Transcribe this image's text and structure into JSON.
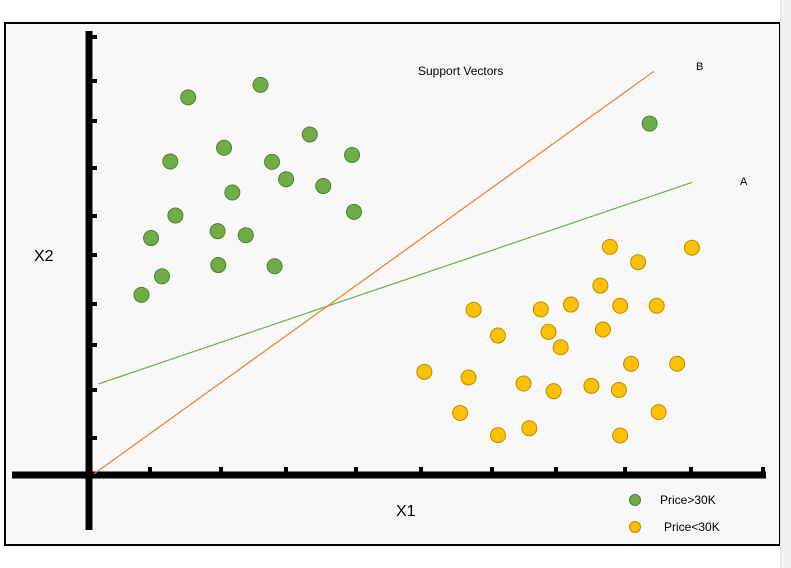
{
  "title": "Support Vectors",
  "x_label": "X1",
  "y_label": "X2",
  "line_a_label": "A",
  "line_b_label": "B",
  "legend": {
    "green": "Price>30K",
    "yellow": "Price<30K"
  },
  "colors": {
    "green_fill": "#70ad47",
    "green_stroke": "#507e32",
    "yellow_fill": "#ffc000",
    "yellow_stroke": "#bc8c00",
    "line_a": "#70ad47",
    "line_b": "#ed7d31",
    "axis": "#000000",
    "background": "#f8f8f8"
  },
  "chart_data": {
    "type": "scatter",
    "title": "Support Vectors",
    "xlabel": "X1",
    "ylabel": "X2",
    "xlim": [
      0,
      10
    ],
    "ylim": [
      0,
      10
    ],
    "x_ticks": 10,
    "y_ticks": 11,
    "series": [
      {
        "name": "Price>30K",
        "color": "#70ad47",
        "points": [
          [
            0.82,
            4.47
          ],
          [
            1.14,
            4.93
          ],
          [
            0.97,
            5.88
          ],
          [
            1.35,
            6.44
          ],
          [
            1.27,
            7.78
          ],
          [
            1.55,
            9.37
          ],
          [
            2.02,
            5.21
          ],
          [
            2.01,
            6.05
          ],
          [
            2.11,
            8.12
          ],
          [
            2.24,
            7.01
          ],
          [
            2.45,
            5.95
          ],
          [
            2.68,
            9.68
          ],
          [
            2.9,
            5.18
          ],
          [
            2.86,
            7.77
          ],
          [
            3.08,
            7.34
          ],
          [
            3.45,
            8.45
          ],
          [
            3.66,
            7.17
          ],
          [
            4.14,
            6.53
          ],
          [
            4.11,
            7.94
          ],
          [
            8.76,
            8.72
          ]
        ]
      },
      {
        "name": "Price<30K",
        "color": "#ffc000",
        "points": [
          [
            5.24,
            2.56
          ],
          [
            5.8,
            1.54
          ],
          [
            5.93,
            2.42
          ],
          [
            6.01,
            4.1
          ],
          [
            6.39,
            3.46
          ],
          [
            6.39,
            0.99
          ],
          [
            6.79,
            2.27
          ],
          [
            6.88,
            1.16
          ],
          [
            7.06,
            4.11
          ],
          [
            7.18,
            3.55
          ],
          [
            7.26,
            2.08
          ],
          [
            7.37,
            3.17
          ],
          [
            7.53,
            4.23
          ],
          [
            7.85,
            2.21
          ],
          [
            7.99,
            4.7
          ],
          [
            8.03,
            3.61
          ],
          [
            8.14,
            5.66
          ],
          [
            8.28,
            2.11
          ],
          [
            8.3,
            4.2
          ],
          [
            8.3,
            0.98
          ],
          [
            8.47,
            2.76
          ],
          [
            8.58,
            5.28
          ],
          [
            8.87,
            4.2
          ],
          [
            8.9,
            1.56
          ],
          [
            9.19,
            2.76
          ],
          [
            9.42,
            5.64
          ]
        ]
      }
    ],
    "lines": [
      {
        "name": "A",
        "color": "#70ad47",
        "from": [
          0.15,
          2.26
        ],
        "to": [
          9.42,
          7.26
        ]
      },
      {
        "name": "B",
        "color": "#ed7d31",
        "from": [
          0.08,
          0.03
        ],
        "to": [
          8.83,
          10.02
        ]
      }
    ]
  }
}
